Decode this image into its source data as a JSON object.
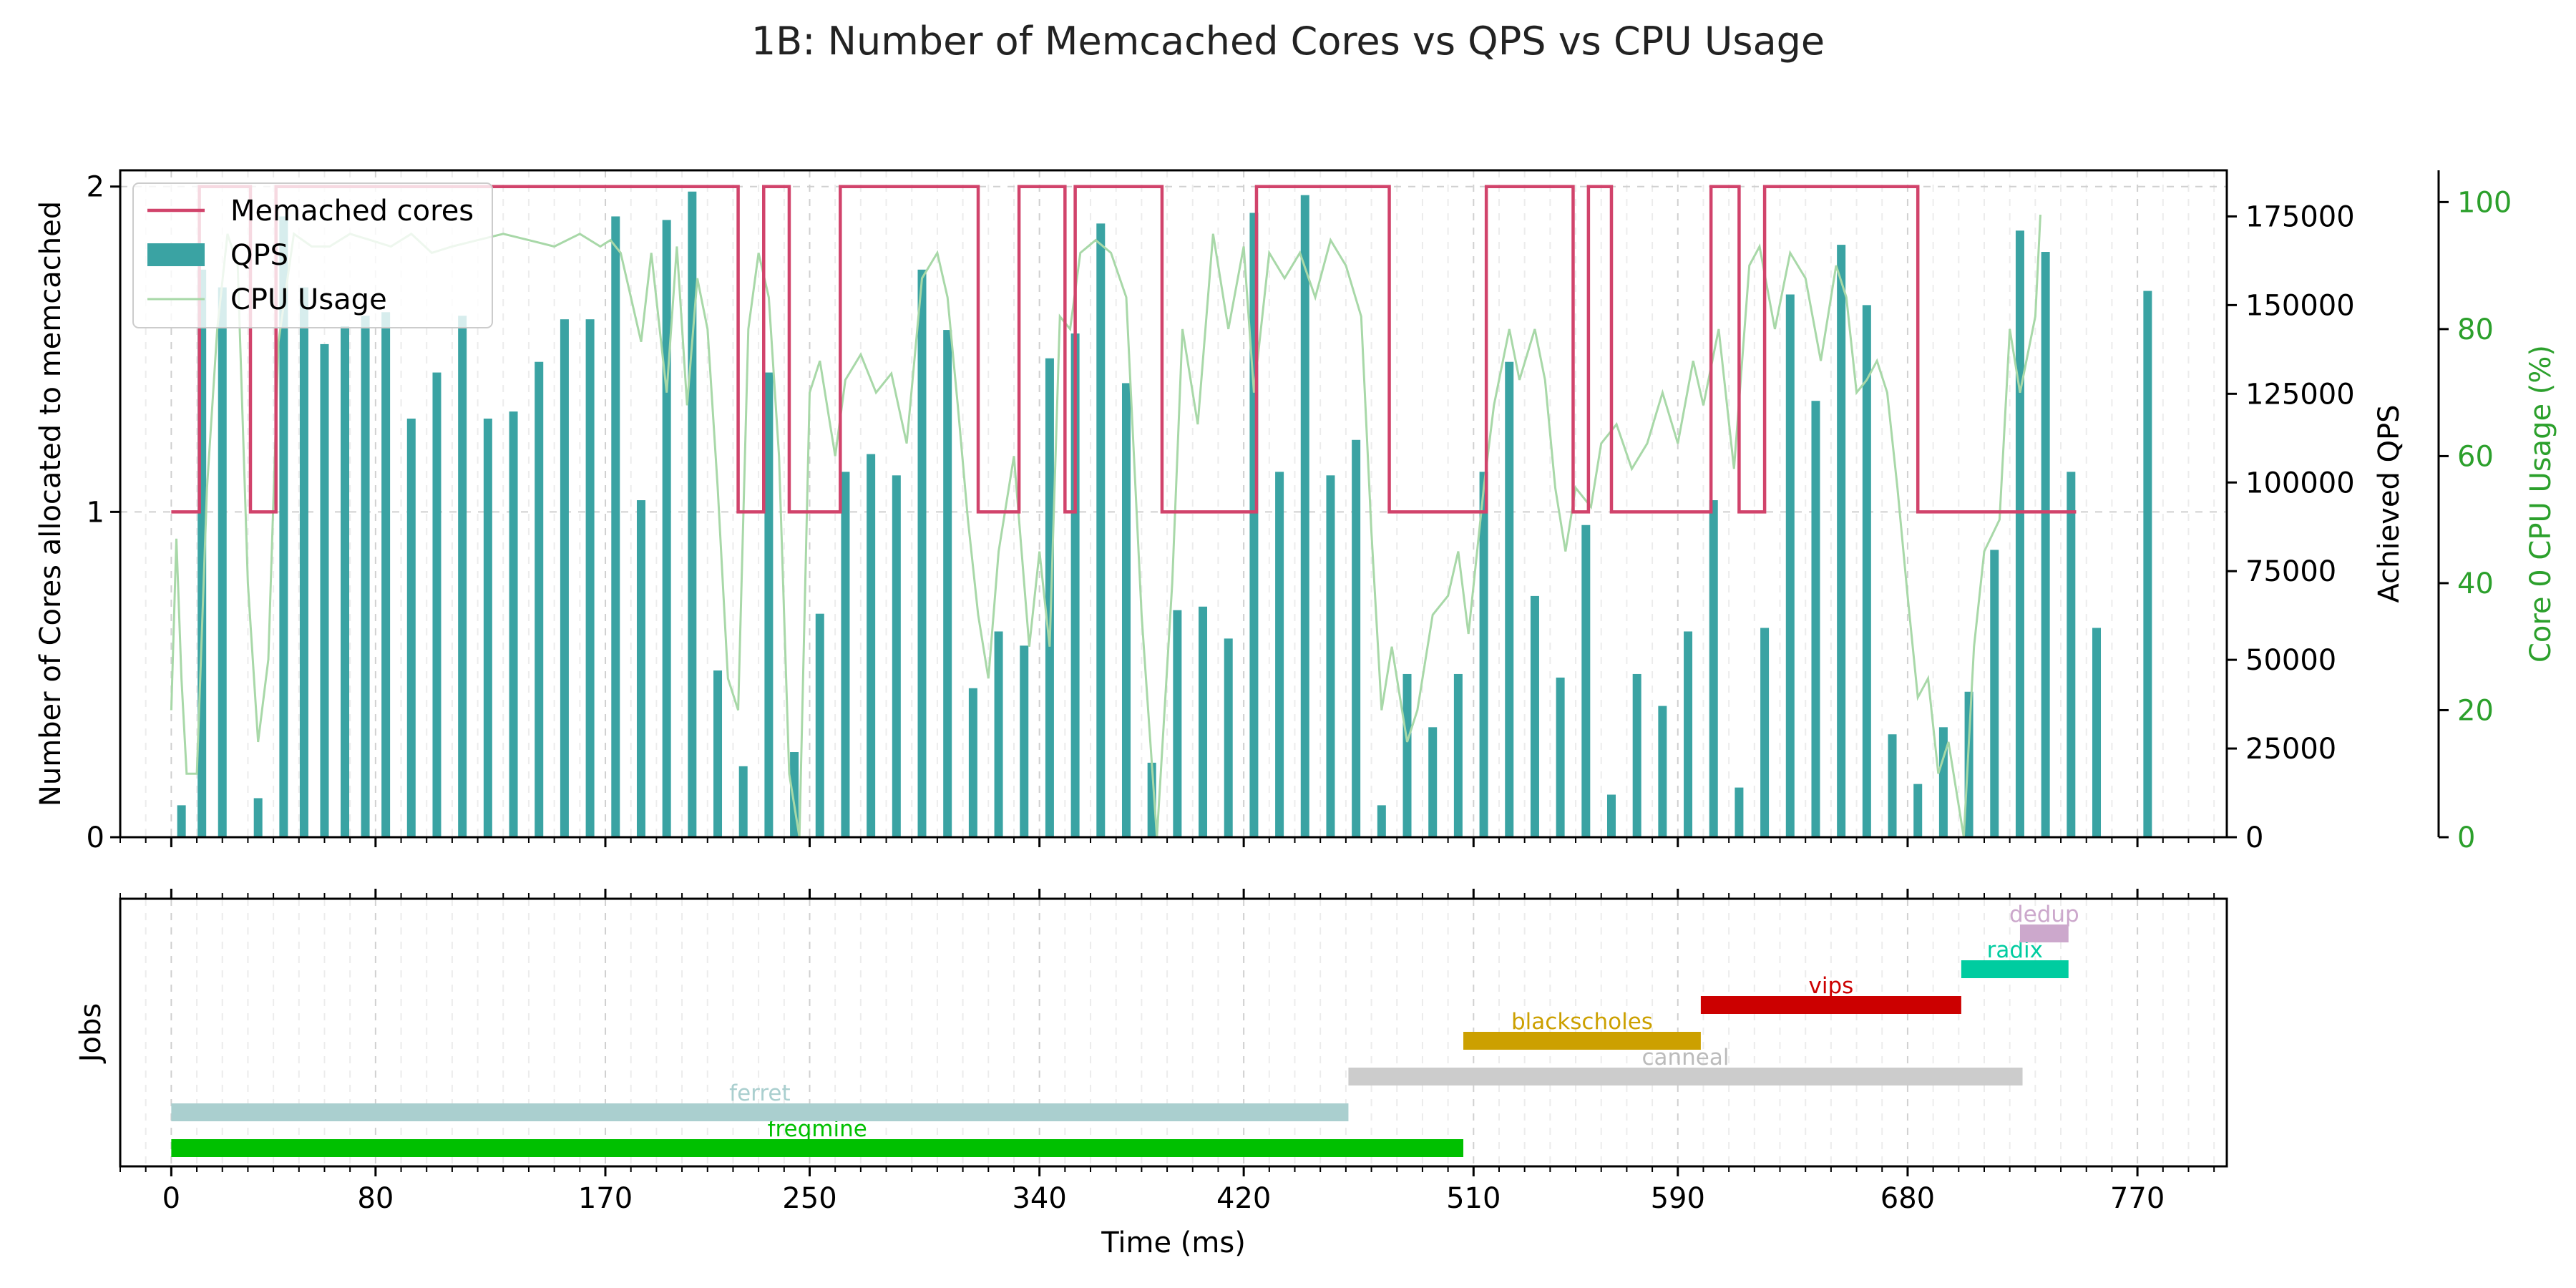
{
  "figure_title": "1B: Number of Memcached Cores vs QPS vs CPU Usage",
  "colors": {
    "cores": "#d1436b",
    "qps": "#3aa3a3",
    "cpu": "#a8d8a8",
    "cpu_axis": "#2ca02c"
  },
  "chart_data": [
    {
      "type": "line",
      "name": "top",
      "ylabel_left": "Number of Cores allocated to memcached",
      "ylabel_right_qps": "Achieved QPS",
      "ylabel_right_cpu": "Core 0 CPU Usage (%)",
      "xlim": [
        -20,
        805
      ],
      "ylim_cores": [
        0,
        2.05
      ],
      "ylim_qps": [
        0,
        188000
      ],
      "ylim_cpu": [
        0,
        105
      ],
      "yticks_cores": [
        "0",
        "1",
        "2"
      ],
      "yticks_qps": [
        "0",
        "25000",
        "50000",
        "75000",
        "100000",
        "125000",
        "150000",
        "175000"
      ],
      "yticks_cpu": [
        "0",
        "20",
        "40",
        "60",
        "80",
        "100"
      ],
      "grid": true,
      "legend_position": "top-left",
      "legend": [
        {
          "key": "cores",
          "label": "Memached cores"
        },
        {
          "key": "qps",
          "label": "QPS"
        },
        {
          "key": "cpu",
          "label": "CPU Usage"
        }
      ],
      "cores_steps": [
        [
          0,
          1
        ],
        [
          11,
          2
        ],
        [
          31,
          1
        ],
        [
          41,
          2
        ],
        [
          222,
          1
        ],
        [
          232,
          2
        ],
        [
          242,
          1
        ],
        [
          262,
          2
        ],
        [
          316,
          1
        ],
        [
          332,
          2
        ],
        [
          350,
          1
        ],
        [
          354,
          2
        ],
        [
          388,
          1
        ],
        [
          425,
          2
        ],
        [
          477,
          1
        ],
        [
          515,
          2
        ],
        [
          549,
          1
        ],
        [
          555,
          2
        ],
        [
          564,
          1
        ],
        [
          603,
          2
        ],
        [
          614,
          1
        ],
        [
          624,
          2
        ],
        [
          684,
          1
        ],
        [
          746,
          1
        ]
      ],
      "qps_bars": [
        [
          4,
          9000
        ],
        [
          12,
          160000
        ],
        [
          20,
          155000
        ],
        [
          28,
          0
        ],
        [
          34,
          11000
        ],
        [
          44,
          175000
        ],
        [
          52,
          155000
        ],
        [
          60,
          139000
        ],
        [
          68,
          144000
        ],
        [
          76,
          147000
        ],
        [
          84,
          148000
        ],
        [
          94,
          118000
        ],
        [
          104,
          131000
        ],
        [
          114,
          147000
        ],
        [
          124,
          118000
        ],
        [
          134,
          120000
        ],
        [
          144,
          134000
        ],
        [
          154,
          146000
        ],
        [
          164,
          146000
        ],
        [
          174,
          175000
        ],
        [
          184,
          95000
        ],
        [
          194,
          174000
        ],
        [
          204,
          182000
        ],
        [
          214,
          47000
        ],
        [
          224,
          20000
        ],
        [
          234,
          131000
        ],
        [
          244,
          24000
        ],
        [
          254,
          63000
        ],
        [
          264,
          103000
        ],
        [
          274,
          108000
        ],
        [
          284,
          102000
        ],
        [
          294,
          160000
        ],
        [
          304,
          143000
        ],
        [
          314,
          42000
        ],
        [
          324,
          58000
        ],
        [
          334,
          54000
        ],
        [
          344,
          135000
        ],
        [
          354,
          142000
        ],
        [
          364,
          173000
        ],
        [
          374,
          128000
        ],
        [
          384,
          21000
        ],
        [
          394,
          64000
        ],
        [
          404,
          65000
        ],
        [
          414,
          56000
        ],
        [
          424,
          176000
        ],
        [
          434,
          103000
        ],
        [
          444,
          181000
        ],
        [
          454,
          102000
        ],
        [
          464,
          112000
        ],
        [
          474,
          9000
        ],
        [
          484,
          46000
        ],
        [
          494,
          31000
        ],
        [
          504,
          46000
        ],
        [
          514,
          103000
        ],
        [
          524,
          134000
        ],
        [
          534,
          68000
        ],
        [
          544,
          45000
        ],
        [
          554,
          88000
        ],
        [
          564,
          12000
        ],
        [
          574,
          46000
        ],
        [
          584,
          37000
        ],
        [
          594,
          58000
        ],
        [
          604,
          95000
        ],
        [
          614,
          14000
        ],
        [
          624,
          59000
        ],
        [
          634,
          153000
        ],
        [
          644,
          123000
        ],
        [
          654,
          167000
        ],
        [
          664,
          150000
        ],
        [
          674,
          29000
        ],
        [
          684,
          15000
        ],
        [
          694,
          31000
        ],
        [
          704,
          41000
        ],
        [
          714,
          81000
        ],
        [
          724,
          171000
        ],
        [
          734,
          165000
        ],
        [
          744,
          103000
        ],
        [
          754,
          59000
        ],
        [
          774,
          154000
        ]
      ],
      "cpu_points": [
        [
          0,
          20
        ],
        [
          2,
          47
        ],
        [
          4,
          25
        ],
        [
          6,
          10
        ],
        [
          10,
          10
        ],
        [
          14,
          55
        ],
        [
          18,
          80
        ],
        [
          22,
          95
        ],
        [
          26,
          90
        ],
        [
          30,
          40
        ],
        [
          34,
          15
        ],
        [
          38,
          28
        ],
        [
          42,
          78
        ],
        [
          48,
          95
        ],
        [
          55,
          93
        ],
        [
          62,
          93
        ],
        [
          70,
          95
        ],
        [
          78,
          94
        ],
        [
          86,
          93
        ],
        [
          94,
          95
        ],
        [
          102,
          92
        ],
        [
          110,
          93
        ],
        [
          120,
          94
        ],
        [
          130,
          95
        ],
        [
          140,
          94
        ],
        [
          150,
          93
        ],
        [
          160,
          95
        ],
        [
          168,
          93
        ],
        [
          172,
          94
        ],
        [
          176,
          92
        ],
        [
          180,
          85
        ],
        [
          184,
          78
        ],
        [
          188,
          92
        ],
        [
          194,
          70
        ],
        [
          198,
          93
        ],
        [
          202,
          68
        ],
        [
          206,
          88
        ],
        [
          210,
          80
        ],
        [
          214,
          55
        ],
        [
          218,
          25
        ],
        [
          222,
          20
        ],
        [
          226,
          80
        ],
        [
          230,
          92
        ],
        [
          234,
          85
        ],
        [
          238,
          60
        ],
        [
          242,
          10
        ],
        [
          246,
          0
        ],
        [
          250,
          70
        ],
        [
          254,
          75
        ],
        [
          260,
          60
        ],
        [
          264,
          72
        ],
        [
          270,
          76
        ],
        [
          276,
          70
        ],
        [
          282,
          73
        ],
        [
          288,
          62
        ],
        [
          294,
          88
        ],
        [
          300,
          92
        ],
        [
          304,
          85
        ],
        [
          308,
          68
        ],
        [
          312,
          50
        ],
        [
          316,
          35
        ],
        [
          320,
          25
        ],
        [
          324,
          45
        ],
        [
          330,
          60
        ],
        [
          336,
          30
        ],
        [
          340,
          45
        ],
        [
          344,
          30
        ],
        [
          348,
          82
        ],
        [
          352,
          80
        ],
        [
          356,
          92
        ],
        [
          362,
          94
        ],
        [
          368,
          92
        ],
        [
          374,
          85
        ],
        [
          380,
          35
        ],
        [
          386,
          0
        ],
        [
          392,
          40
        ],
        [
          396,
          80
        ],
        [
          402,
          65
        ],
        [
          408,
          95
        ],
        [
          414,
          80
        ],
        [
          420,
          93
        ],
        [
          424,
          70
        ],
        [
          430,
          92
        ],
        [
          436,
          88
        ],
        [
          442,
          92
        ],
        [
          448,
          85
        ],
        [
          454,
          94
        ],
        [
          460,
          90
        ],
        [
          466,
          82
        ],
        [
          470,
          48
        ],
        [
          474,
          20
        ],
        [
          478,
          30
        ],
        [
          484,
          15
        ],
        [
          488,
          20
        ],
        [
          494,
          35
        ],
        [
          500,
          38
        ],
        [
          504,
          45
        ],
        [
          508,
          32
        ],
        [
          514,
          55
        ],
        [
          518,
          68
        ],
        [
          524,
          80
        ],
        [
          528,
          72
        ],
        [
          534,
          80
        ],
        [
          538,
          72
        ],
        [
          542,
          55
        ],
        [
          546,
          45
        ],
        [
          550,
          55
        ],
        [
          556,
          52
        ],
        [
          560,
          62
        ],
        [
          566,
          65
        ],
        [
          572,
          58
        ],
        [
          578,
          62
        ],
        [
          584,
          70
        ],
        [
          590,
          62
        ],
        [
          596,
          75
        ],
        [
          600,
          68
        ],
        [
          606,
          80
        ],
        [
          612,
          58
        ],
        [
          618,
          90
        ],
        [
          622,
          93
        ],
        [
          628,
          80
        ],
        [
          634,
          92
        ],
        [
          640,
          88
        ],
        [
          646,
          75
        ],
        [
          652,
          90
        ],
        [
          656,
          85
        ],
        [
          660,
          70
        ],
        [
          664,
          72
        ],
        [
          668,
          75
        ],
        [
          672,
          70
        ],
        [
          676,
          55
        ],
        [
          680,
          38
        ],
        [
          684,
          22
        ],
        [
          688,
          25
        ],
        [
          692,
          10
        ],
        [
          696,
          15
        ],
        [
          700,
          5
        ],
        [
          702,
          0
        ],
        [
          706,
          30
        ],
        [
          710,
          45
        ],
        [
          716,
          50
        ],
        [
          720,
          80
        ],
        [
          724,
          70
        ],
        [
          730,
          82
        ],
        [
          732,
          98
        ]
      ]
    },
    {
      "type": "gantt",
      "name": "bottom",
      "ylabel": "Jobs",
      "xlabel": "Time (ms)",
      "xlim": [
        -20,
        805
      ],
      "xticks": [
        0,
        80,
        170,
        250,
        340,
        420,
        510,
        590,
        680,
        770
      ],
      "xtick_labels": [
        "0",
        "80",
        "170",
        "250",
        "340",
        "420",
        "510",
        "590",
        "680",
        "770"
      ],
      "jobs": [
        {
          "name": "freqmine",
          "start": 0,
          "end": 506,
          "color": "#00c000",
          "label_color": "#00c000"
        },
        {
          "name": "ferret",
          "start": 0,
          "end": 461,
          "color": "#aacfcf",
          "label_color": "#aacfcf"
        },
        {
          "name": "canneal",
          "start": 461,
          "end": 725,
          "color": "#cccccc",
          "label_color": "#bbbbbb"
        },
        {
          "name": "blackscholes",
          "start": 506,
          "end": 599,
          "color": "#cca000",
          "label_color": "#cca000"
        },
        {
          "name": "vips",
          "start": 599,
          "end": 701,
          "color": "#cc0000",
          "label_color": "#cc0000"
        },
        {
          "name": "radix",
          "start": 701,
          "end": 743,
          "color": "#00cca0",
          "label_color": "#00cca0"
        },
        {
          "name": "dedup",
          "start": 724,
          "end": 743,
          "color": "#cca8cc",
          "label_color": "#cca8cc"
        }
      ]
    }
  ]
}
